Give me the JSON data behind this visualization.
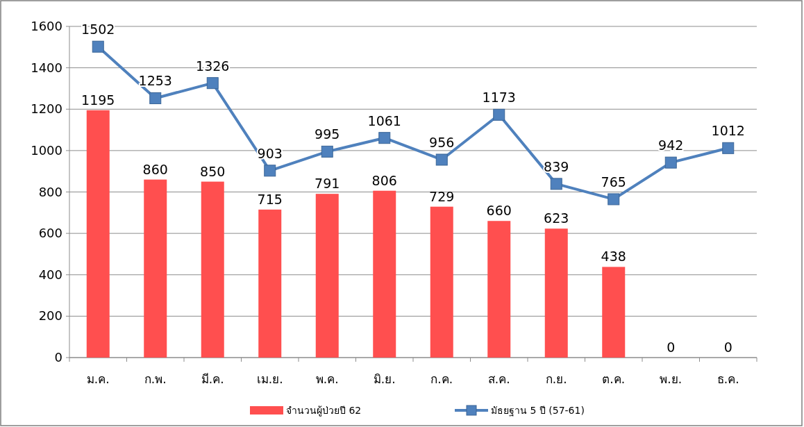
{
  "chart_data": {
    "type": "bar",
    "categories": [
      "ม.ค.",
      "ก.พ.",
      "มี.ค.",
      "เม.ย.",
      "พ.ค.",
      "มิ.ย.",
      "ก.ค.",
      "ส.ค.",
      "ก.ย.",
      "ต.ค.",
      "พ.ย.",
      "ธ.ค."
    ],
    "series": [
      {
        "name": "จำนวนผู้ป่วยปี 62",
        "color": "#ff4f4f",
        "values": [
          1195,
          860,
          850,
          715,
          791,
          806,
          729,
          660,
          623,
          438,
          0,
          0
        ]
      },
      {
        "name": "มัธยฐาน 5 ปี (57-61)",
        "type": "line",
        "color": "#4f81bd",
        "marker": "square",
        "values": [
          1502,
          1253,
          1326,
          903,
          995,
          1061,
          956,
          1173,
          839,
          765,
          942,
          1012
        ]
      }
    ],
    "ylim": [
      0,
      1600
    ],
    "yticks": [
      0,
      200,
      400,
      600,
      800,
      1000,
      1200,
      1400,
      1600
    ],
    "grid": "y",
    "legend": "bottom",
    "data_labels": true
  }
}
